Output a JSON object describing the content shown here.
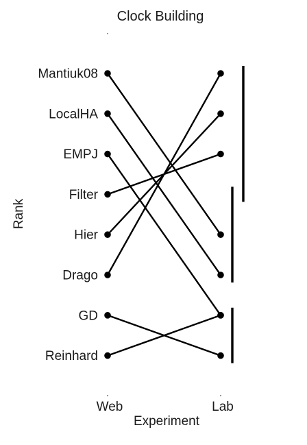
{
  "chart_data": {
    "type": "slope",
    "title": "Clock Building",
    "xlabel": "Experiment",
    "ylabel": "Rank",
    "x": [
      "Web",
      "Lab"
    ],
    "methods": [
      {
        "name": "Mantiuk08",
        "web_rank": 1,
        "lab_rank": 5
      },
      {
        "name": "LocalHA",
        "web_rank": 2,
        "lab_rank": 6
      },
      {
        "name": "EMPJ",
        "web_rank": 3,
        "lab_rank": 7
      },
      {
        "name": "Filter",
        "web_rank": 4,
        "lab_rank": 3
      },
      {
        "name": "Hier",
        "web_rank": 5,
        "lab_rank": 2
      },
      {
        "name": "Drago",
        "web_rank": 6,
        "lab_rank": 1
      },
      {
        "name": "GD",
        "web_rank": 7,
        "lab_rank": 8
      },
      {
        "name": "Reinhard",
        "web_rank": 8,
        "lab_rank": 7
      }
    ],
    "lab_groups": [
      {
        "from_rank": 1,
        "to_rank": 4
      },
      {
        "from_rank": 4,
        "to_rank": 6
      },
      {
        "from_rank": 7,
        "to_rank": 8
      }
    ],
    "grid": false,
    "legend": "none"
  }
}
